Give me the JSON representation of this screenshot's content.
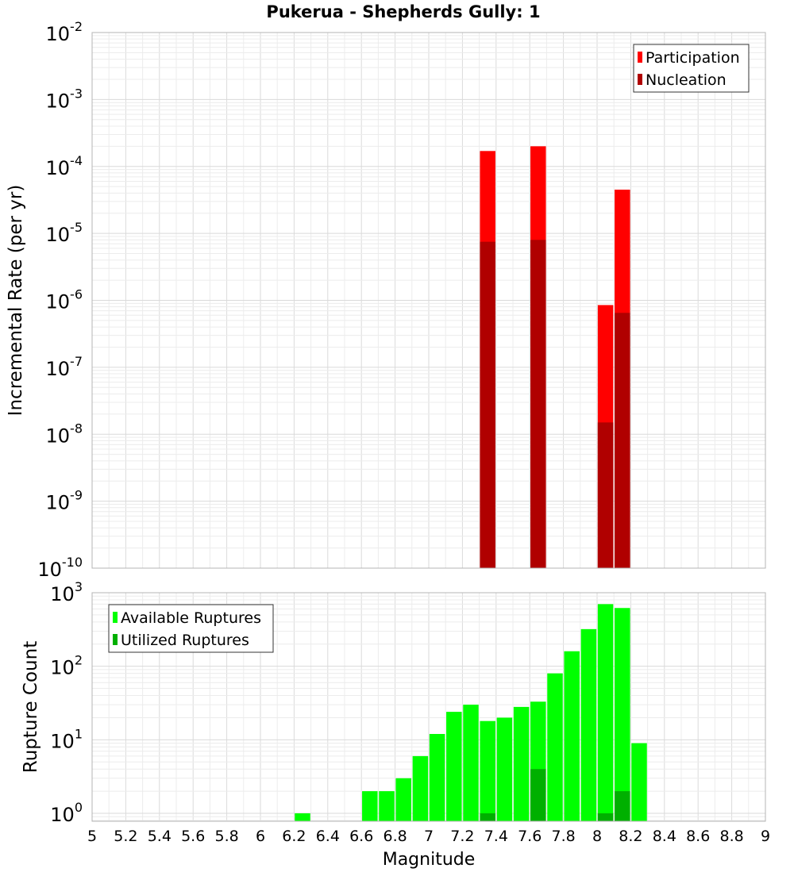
{
  "title": "Pukerua - Shepherds Gully: 1",
  "chart_data": [
    {
      "type": "bar",
      "ylabel": "Incremental Rate (per yr)",
      "yscale": "log",
      "ylim": [
        1e-10,
        0.01
      ],
      "y_tick_exponents": [
        "-10",
        "-9",
        "-8",
        "-7",
        "-6",
        "-5",
        "-4",
        "-3",
        "-2"
      ],
      "legend": {
        "position": "top-right",
        "entries": [
          "Participation",
          "Nucleation"
        ]
      },
      "colors": {
        "Participation": "#ff0000",
        "Nucleation": "#b00000"
      },
      "x": [
        7.35,
        7.65,
        8.05,
        8.15
      ],
      "series": [
        {
          "name": "Participation",
          "values": [
            0.00017,
            0.0002,
            8.5e-07,
            4.5e-05
          ]
        },
        {
          "name": "Nucleation",
          "values": [
            7.5e-06,
            8e-06,
            1.5e-08,
            6.5e-07
          ]
        }
      ]
    },
    {
      "type": "bar",
      "xlabel": "Magnitude",
      "ylabel": "Rupture Count",
      "yscale": "log",
      "ylim": [
        0.78,
        1000
      ],
      "y_tick_exponents": [
        "0",
        "1",
        "2",
        "3"
      ],
      "xlim": [
        5,
        9
      ],
      "x_ticks": [
        "5",
        "5.2",
        "5.4",
        "5.6",
        "5.8",
        "6",
        "6.2",
        "6.4",
        "6.6",
        "6.8",
        "7",
        "7.2",
        "7.4",
        "7.6",
        "7.8",
        "8",
        "8.2",
        "8.4",
        "8.6",
        "8.8",
        "9"
      ],
      "legend": {
        "position": "top-left",
        "entries": [
          "Available Ruptures",
          "Utilized Ruptures"
        ]
      },
      "colors": {
        "Available Ruptures": "#00ff00",
        "Utilized Ruptures": "#00b000"
      },
      "x": [
        6.25,
        6.65,
        6.75,
        6.85,
        6.95,
        7.05,
        7.15,
        7.25,
        7.35,
        7.45,
        7.55,
        7.65,
        7.75,
        7.85,
        7.95,
        8.05,
        8.15,
        8.25
      ],
      "series": [
        {
          "name": "Available Ruptures",
          "values": [
            1,
            2,
            2,
            3,
            6,
            12,
            24,
            30,
            18,
            20,
            28,
            33,
            80,
            160,
            320,
            700,
            620,
            9
          ]
        },
        {
          "name": "Utilized Ruptures",
          "values": [
            0,
            0,
            0,
            0,
            0,
            0,
            0,
            0,
            1,
            0,
            0,
            4,
            0,
            0,
            0,
            1,
            2,
            0
          ]
        }
      ]
    }
  ]
}
